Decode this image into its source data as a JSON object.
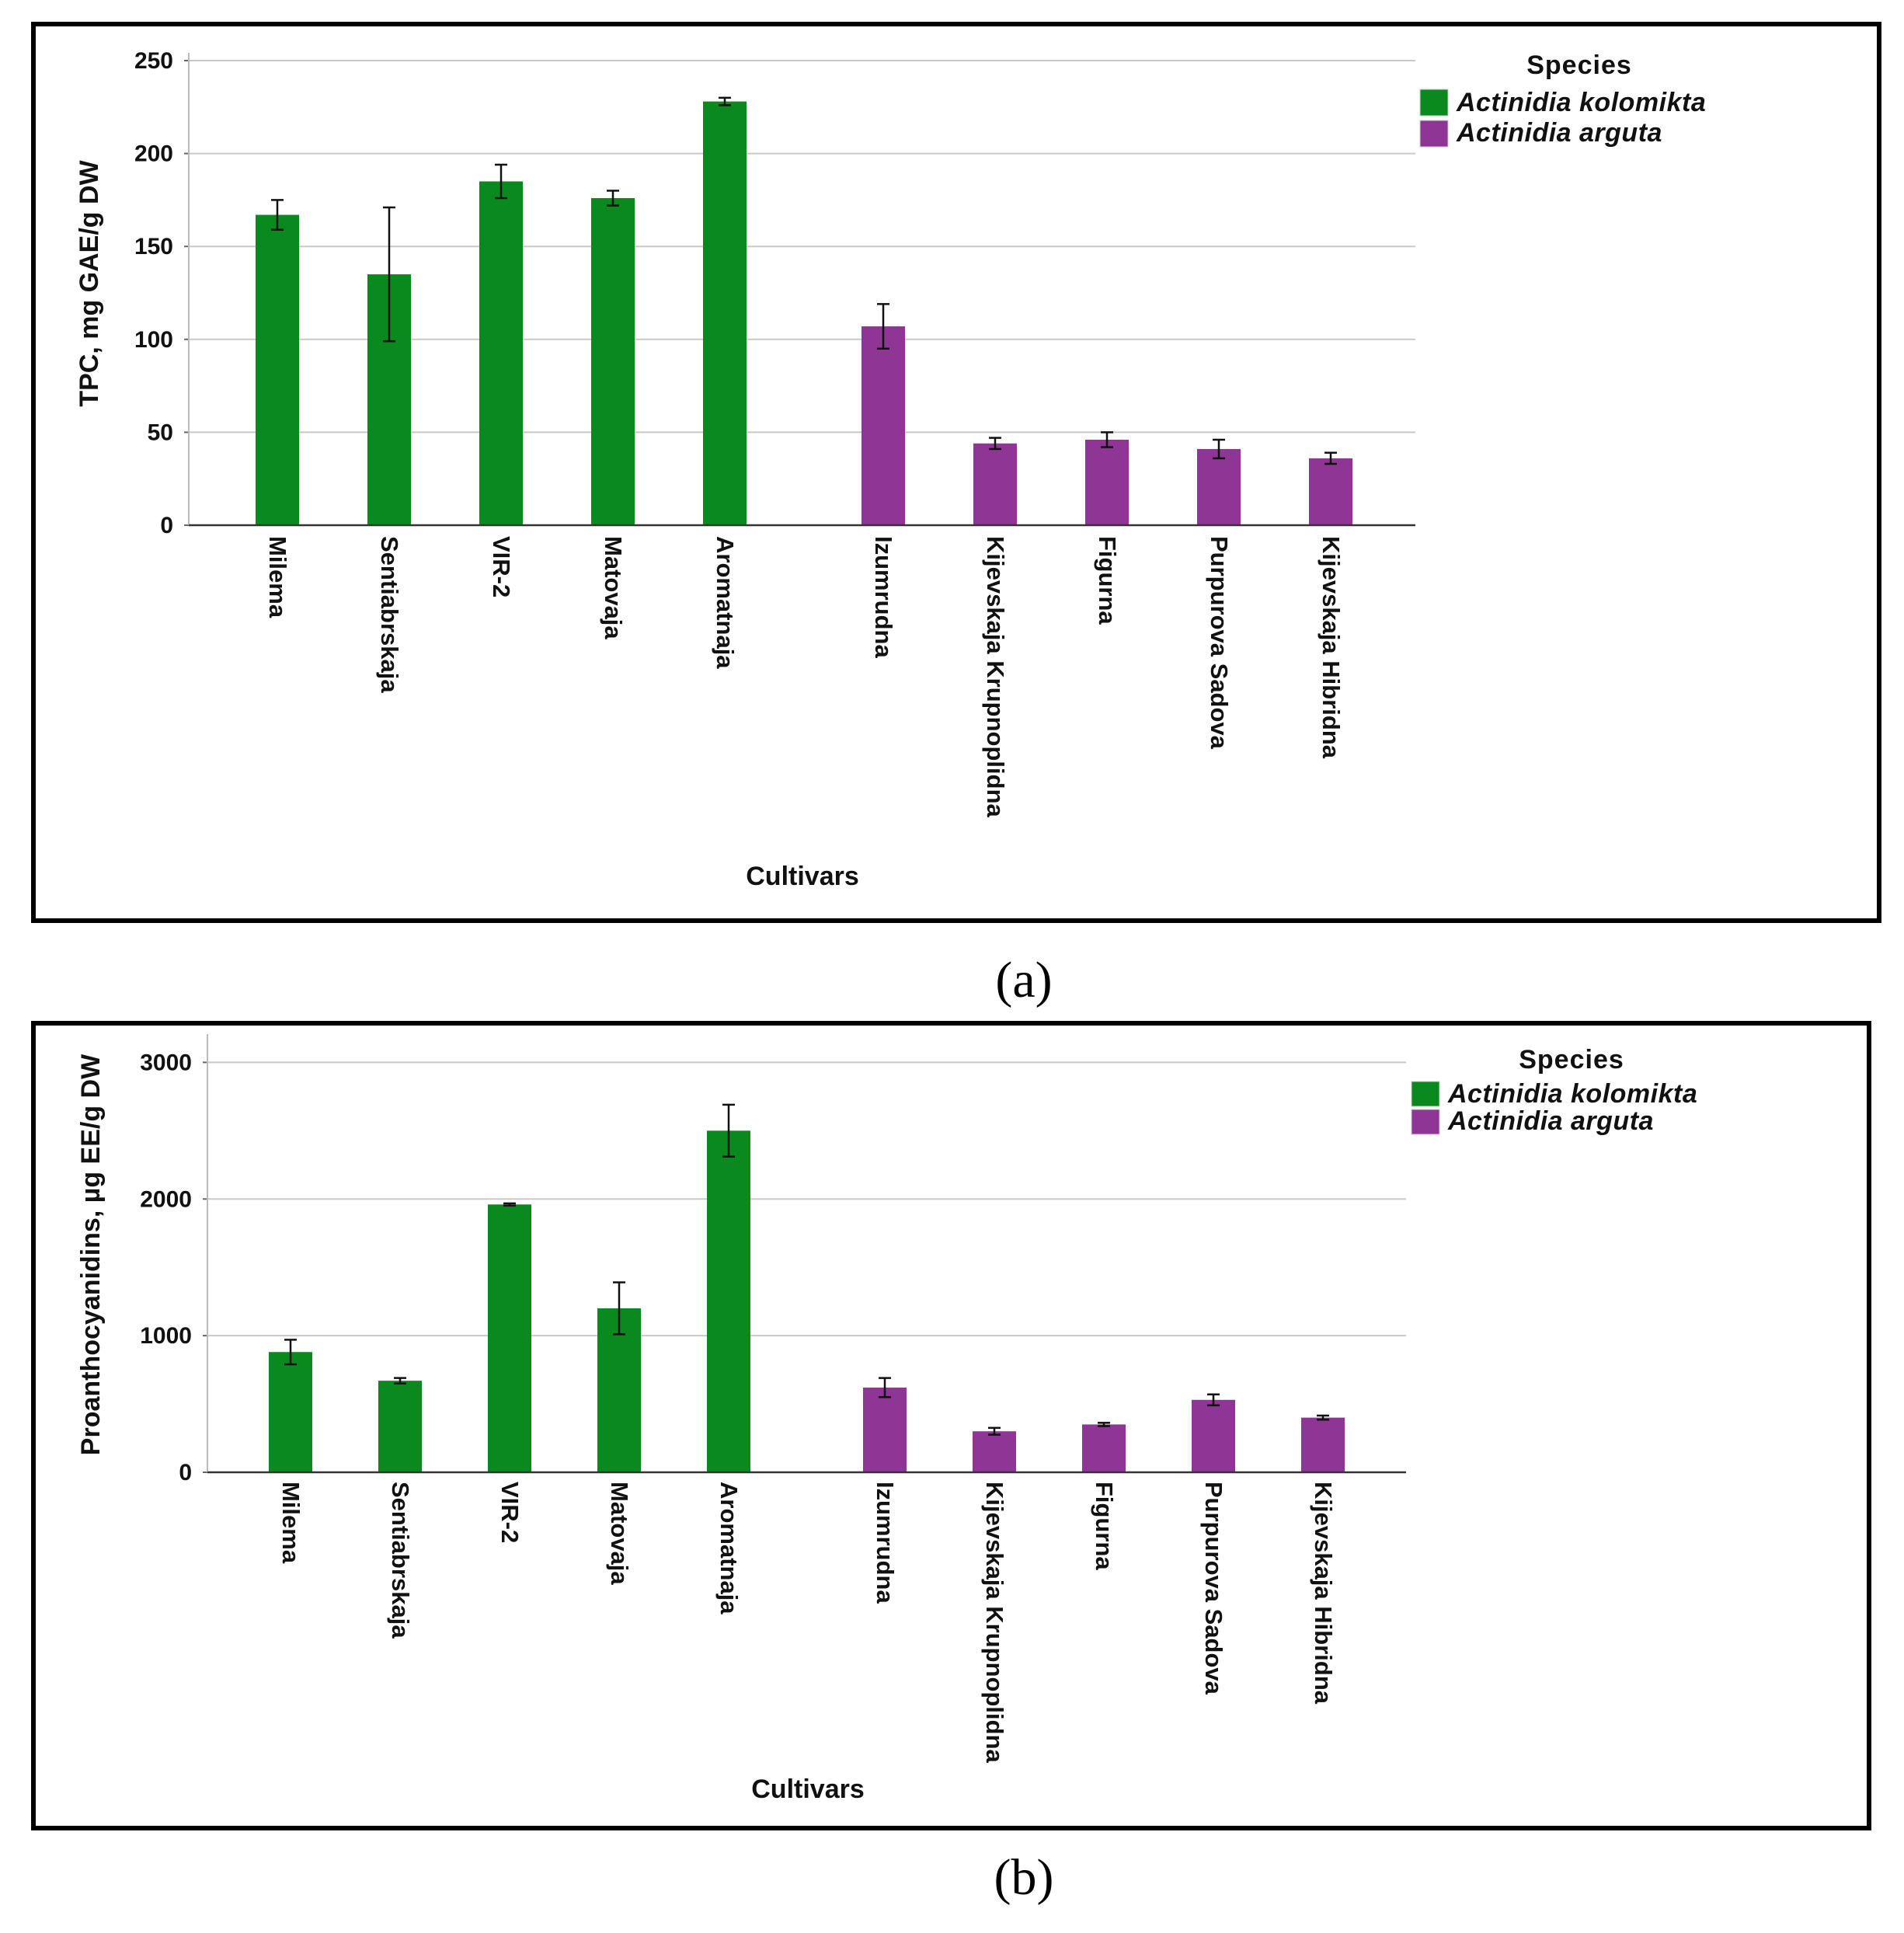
{
  "chart_data": [
    {
      "type": "bar",
      "caption": "(a)",
      "title": "",
      "xlabel": "Cultivars",
      "ylabel": "TPC, mg GAE/g DW",
      "ylim": [
        0,
        250
      ],
      "yticks": [
        0,
        50,
        100,
        150,
        200,
        250
      ],
      "grid": true,
      "legend_position": "top-right",
      "legend_title": "Species",
      "series": [
        {
          "name": "Actinidia kolomikta",
          "color": "#0a8a1e"
        },
        {
          "name": "Actinidia arguta",
          "color": "#8e3595"
        }
      ],
      "categories": [
        "Milema",
        "Sentiabrskaja",
        "VIR-2",
        "Matovaja",
        "Aromatnaja",
        "Izumrudna",
        "Kijevskaja Krupnoplidna",
        "Figurna",
        "Purpurova Sadova",
        "Kijevskaja Hibridna"
      ],
      "bar_series": [
        0,
        0,
        0,
        0,
        0,
        1,
        1,
        1,
        1,
        1
      ],
      "values": [
        167,
        135,
        185,
        176,
        228,
        107,
        44,
        46,
        41,
        36
      ],
      "errors": [
        8,
        36,
        9,
        4,
        2,
        12,
        3,
        4,
        5,
        3
      ]
    },
    {
      "type": "bar",
      "caption": "(b)",
      "title": "",
      "xlabel": "Cultivars",
      "ylabel": "Proanthocyanidins, µg EE/g DW",
      "ylim": [
        0,
        3150
      ],
      "yticks": [
        0,
        1000,
        2000,
        3000
      ],
      "grid": true,
      "legend_position": "top-right",
      "legend_title": "Species",
      "series": [
        {
          "name": "Actinidia kolomikta",
          "color": "#0a8a1e"
        },
        {
          "name": "Actinidia arguta",
          "color": "#8e3595"
        }
      ],
      "categories": [
        "Milema",
        "Sentiabrskaja",
        "VIR-2",
        "Matovaja",
        "Aromatnaja",
        "Izumrudna",
        "Kijevskaja Krupnoplidna",
        "Figurna",
        "Purpurova Sadova",
        "Kijevskaja Hibridna"
      ],
      "bar_series": [
        0,
        0,
        0,
        0,
        0,
        1,
        1,
        1,
        1,
        1
      ],
      "values": [
        880,
        670,
        1960,
        1200,
        2500,
        620,
        300,
        350,
        530,
        400
      ],
      "errors": [
        90,
        20,
        8,
        190,
        190,
        70,
        25,
        12,
        40,
        15
      ]
    }
  ]
}
